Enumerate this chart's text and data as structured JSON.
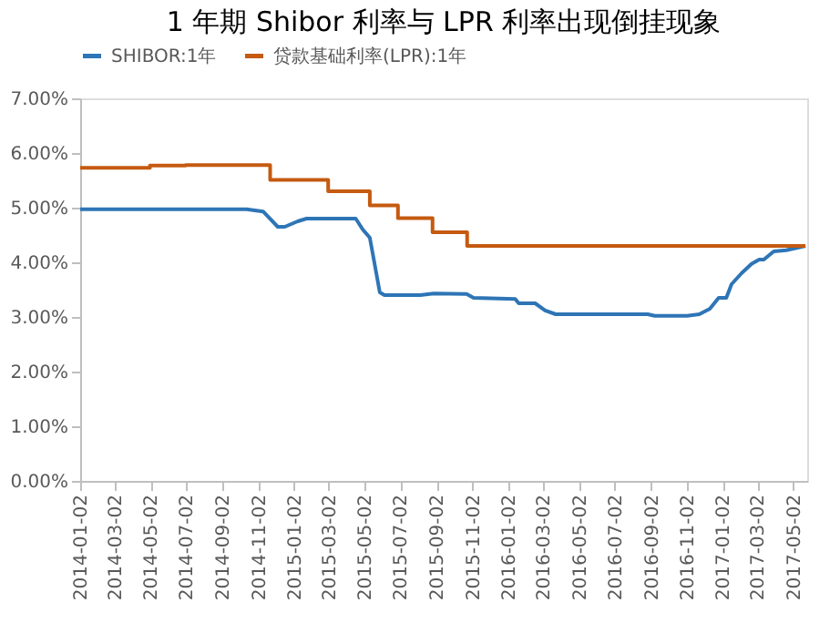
{
  "chart_data": {
    "type": "line",
    "title": "1 年期 Shibor 利率与 LPR 利率出现倒挂现象",
    "xlim": [
      "2014-01-02",
      "2017-05-26"
    ],
    "xticks": [
      "2014-01-02",
      "2014-03-02",
      "2014-05-02",
      "2014-07-02",
      "2014-09-02",
      "2014-11-02",
      "2015-01-02",
      "2015-03-02",
      "2015-05-02",
      "2015-07-02",
      "2015-09-02",
      "2015-11-02",
      "2016-01-02",
      "2016-03-02",
      "2016-05-02",
      "2016-07-02",
      "2016-09-02",
      "2016-11-02",
      "2017-01-02",
      "2017-03-02",
      "2017-05-02"
    ],
    "ylim": [
      0,
      7
    ],
    "yticks": [
      {
        "value": 0,
        "label": "0.00%"
      },
      {
        "value": 1,
        "label": "1.00%"
      },
      {
        "value": 2,
        "label": "2.00%"
      },
      {
        "value": 3,
        "label": "3.00%"
      },
      {
        "value": 4,
        "label": "4.00%"
      },
      {
        "value": 5,
        "label": "5.00%"
      },
      {
        "value": 6,
        "label": "6.00%"
      },
      {
        "value": 7,
        "label": "7.00%"
      }
    ],
    "grid": false,
    "legend": "top",
    "marker": "none",
    "line_style": "solid",
    "series": [
      {
        "name": "SHIBOR:1年",
        "color": "#2e75b6",
        "type": "line",
        "x": [
          "2014-01-02",
          "2014-10-13",
          "2014-11-10",
          "2014-12-05",
          "2014-12-17",
          "2015-01-08",
          "2015-01-23",
          "2015-04-17",
          "2015-04-29",
          "2015-05-11",
          "2015-05-17",
          "2015-05-28",
          "2015-06-05",
          "2015-08-05",
          "2015-08-28",
          "2015-10-23",
          "2015-11-04",
          "2016-01-14",
          "2016-01-20",
          "2016-02-17",
          "2016-03-05",
          "2016-03-23",
          "2016-08-27",
          "2016-09-08",
          "2016-11-02",
          "2016-11-23",
          "2016-12-11",
          "2016-12-26",
          "2017-01-08",
          "2017-01-17",
          "2017-02-03",
          "2017-02-20",
          "2017-03-05",
          "2017-03-13",
          "2017-03-30",
          "2017-04-20",
          "2017-05-11",
          "2017-05-23"
        ],
        "values": [
          4.97,
          4.97,
          4.93,
          4.65,
          4.65,
          4.75,
          4.8,
          4.8,
          4.6,
          4.45,
          4.1,
          3.45,
          3.4,
          3.4,
          3.43,
          3.42,
          3.35,
          3.33,
          3.25,
          3.25,
          3.12,
          3.05,
          3.05,
          3.02,
          3.02,
          3.05,
          3.15,
          3.35,
          3.35,
          3.6,
          3.8,
          3.97,
          4.05,
          4.05,
          4.2,
          4.22,
          4.27,
          4.3
        ]
      },
      {
        "name": "贷款基础利率(LPR):1年",
        "color": "#c55a11",
        "type": "step",
        "x": [
          "2014-01-02",
          "2014-05-01",
          "2014-07-01",
          "2014-11-22",
          "2015-03-01",
          "2015-05-11",
          "2015-06-28",
          "2015-08-26",
          "2015-10-24",
          "2017-05-23"
        ],
        "values": [
          5.73,
          5.77,
          5.78,
          5.51,
          5.3,
          5.04,
          4.81,
          4.55,
          4.3,
          4.3
        ]
      }
    ]
  }
}
